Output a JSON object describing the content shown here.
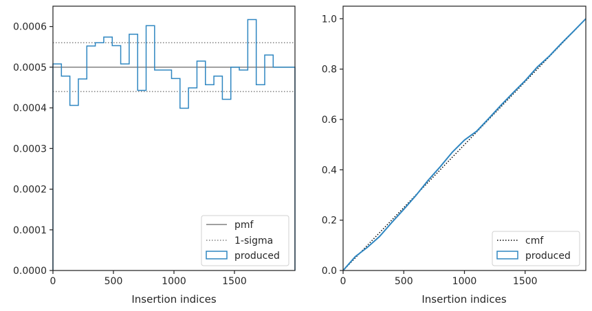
{
  "colors": {
    "produced": "#2e86c1",
    "pmf": "#808080",
    "sigma": "#808080",
    "cmf": "#000000",
    "axes": "#262626"
  },
  "chart_data": [
    {
      "type": "step",
      "xlabel": "Insertion indices",
      "ylabel": "",
      "xlim": [
        0,
        2000
      ],
      "ylim": [
        0,
        0.00065
      ],
      "xticks": [
        0,
        500,
        1000,
        1500
      ],
      "xtick_labels": [
        "0",
        "500",
        "1000",
        "1500"
      ],
      "yticks": [
        0,
        0.0001,
        0.0002,
        0.0003,
        0.0004,
        0.0005,
        0.0006
      ],
      "ytick_labels": [
        "0.0000",
        "0.0001",
        "0.0002",
        "0.0003",
        "0.0004",
        "0.0005",
        "0.0006"
      ],
      "grid": false,
      "legend_position": "lower-right",
      "pmf": 0.0005,
      "sigma_lower": 0.00044,
      "sigma_upper": 0.00056,
      "legend": [
        "pmf",
        "1-sigma",
        "produced"
      ],
      "produced": {
        "bin_edges": [
          0,
          70,
          140,
          210,
          280,
          350,
          420,
          490,
          560,
          630,
          700,
          770,
          840,
          910,
          980,
          1050,
          1120,
          1190,
          1260,
          1330,
          1400,
          1470,
          1540,
          1610,
          1680,
          1750,
          1820,
          1890,
          2000
        ],
        "values": [
          0.000508,
          0.000478,
          0.000406,
          0.000471,
          0.000552,
          0.00056,
          0.000574,
          0.000553,
          0.000508,
          0.000581,
          0.000443,
          0.000602,
          0.000493,
          0.000493,
          0.000472,
          0.000399,
          0.000449,
          0.000515,
          0.000457,
          0.000478,
          0.000421,
          0.0005,
          0.000493,
          0.000617,
          0.000457,
          0.00053,
          0.0005,
          0.0005
        ]
      }
    },
    {
      "type": "line",
      "xlabel": "Insertion indices",
      "ylabel": "",
      "xlim": [
        0,
        2000
      ],
      "ylim": [
        0,
        1.05
      ],
      "xticks": [
        0,
        500,
        1000,
        1500
      ],
      "xtick_labels": [
        "0",
        "500",
        "1000",
        "1500"
      ],
      "yticks": [
        0,
        0.2,
        0.4,
        0.6,
        0.8,
        1.0
      ],
      "ytick_labels": [
        "0.0",
        "0.2",
        "0.4",
        "0.6",
        "0.8",
        "1.0"
      ],
      "grid": false,
      "legend_position": "lower-right",
      "legend": [
        "cmf",
        "produced"
      ],
      "cmf": {
        "x": [
          0,
          2000
        ],
        "y": [
          0,
          1.0
        ]
      },
      "produced": {
        "x": [
          0,
          100,
          200,
          300,
          400,
          500,
          600,
          700,
          800,
          900,
          1000,
          1100,
          1200,
          1300,
          1400,
          1500,
          1600,
          1700,
          1800,
          1900,
          2000
        ],
        "y": [
          0.0,
          0.055,
          0.092,
          0.135,
          0.19,
          0.243,
          0.298,
          0.358,
          0.412,
          0.47,
          0.518,
          0.553,
          0.604,
          0.656,
          0.706,
          0.754,
          0.808,
          0.852,
          0.903,
          0.951,
          1.0
        ]
      }
    }
  ]
}
